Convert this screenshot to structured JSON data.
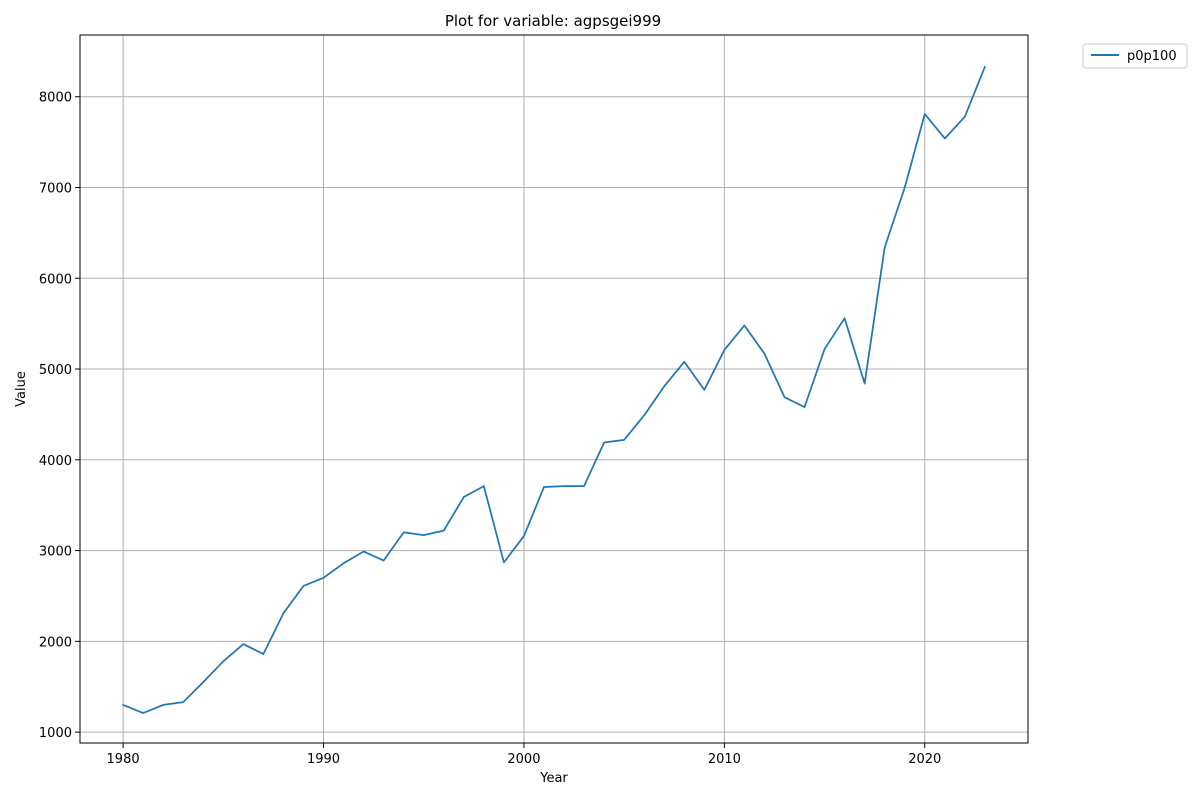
{
  "chart_data": {
    "type": "line",
    "title": "Plot for variable: agpsgei999",
    "xlabel": "Year",
    "ylabel": "Value",
    "xlim": [
      1977.85,
      2025.15
    ],
    "ylim": [
      880,
      8680
    ],
    "x_ticks": [
      1980,
      1990,
      2000,
      2010,
      2020
    ],
    "y_ticks": [
      1000,
      2000,
      3000,
      4000,
      5000,
      6000,
      7000,
      8000
    ],
    "grid": true,
    "legend_position": "outside top-right",
    "colors": {
      "series": "#1f77b4",
      "grid": "#b0b0b0",
      "axes": "#000000"
    },
    "x": [
      1980,
      1981,
      1982,
      1983,
      1984,
      1985,
      1986,
      1987,
      1988,
      1989,
      1990,
      1991,
      1992,
      1993,
      1994,
      1995,
      1996,
      1997,
      1998,
      1999,
      2000,
      2001,
      2002,
      2003,
      2004,
      2005,
      2006,
      2007,
      2008,
      2009,
      2010,
      2011,
      2012,
      2013,
      2014,
      2015,
      2016,
      2017,
      2018,
      2019,
      2020,
      2021,
      2022,
      2023
    ],
    "series": [
      {
        "name": "p0p100",
        "values": [
          1300,
          1210,
          1300,
          1330,
          1550,
          1780,
          1970,
          1860,
          2310,
          2610,
          2700,
          2860,
          2990,
          2890,
          3200,
          3170,
          3220,
          3590,
          3710,
          2870,
          3160,
          3700,
          3710,
          3710,
          4190,
          4220,
          4490,
          4810,
          5080,
          4770,
          5210,
          5480,
          5170,
          4690,
          4580,
          5220,
          5560,
          4840,
          6340,
          7000,
          7810,
          7540,
          7780,
          8330
        ]
      }
    ]
  }
}
